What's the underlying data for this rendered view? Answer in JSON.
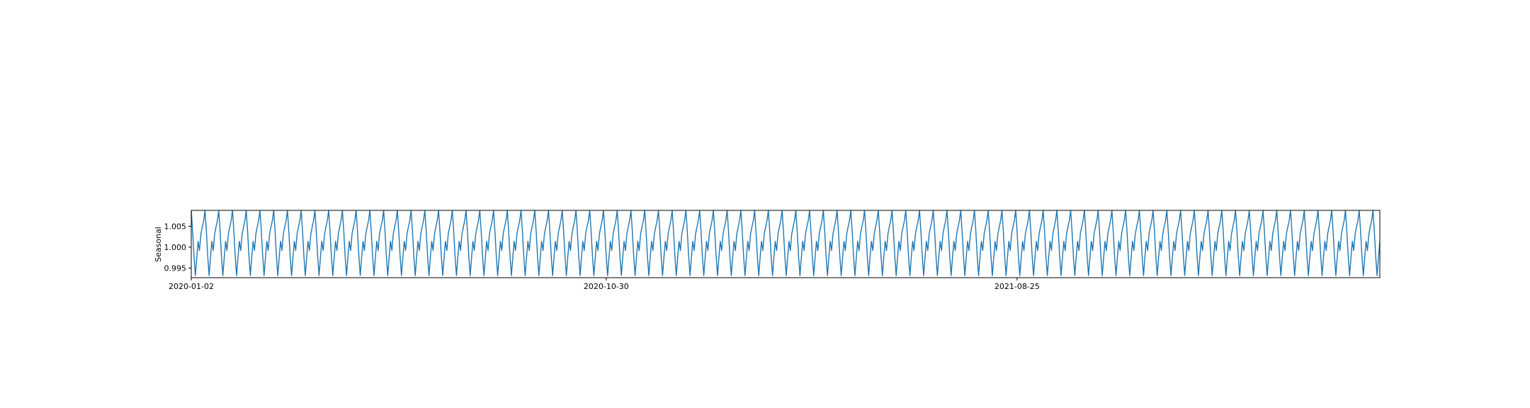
{
  "chart_data": {
    "type": "line",
    "title": "",
    "xlabel": "",
    "ylabel": "Seasonal",
    "x_type": "date",
    "xlim": [
      "2020-01-02",
      "2022-05-16"
    ],
    "ylim": [
      0.9927,
      1.0088
    ],
    "grid": false,
    "legend": "none",
    "x_ticks": [
      "2020-01-02",
      "2020-10-30",
      "2021-08-25"
    ],
    "y_ticks": [
      0.995,
      1.0,
      1.005
    ],
    "y_tick_labels": [
      "0.995",
      "1.000",
      "1.005"
    ],
    "line_color": "#1f77b4",
    "series": [
      {
        "pattern": [
          1.0088,
          1.0038,
          0.9978,
          0.9932,
          0.9975,
          1.0014,
          0.9992,
          1.0031,
          1.0048,
          1.0063
        ],
        "x_start": "2020-01-02",
        "x_end": "2022-05-16",
        "note_pattern_repeats": true
      }
    ]
  }
}
